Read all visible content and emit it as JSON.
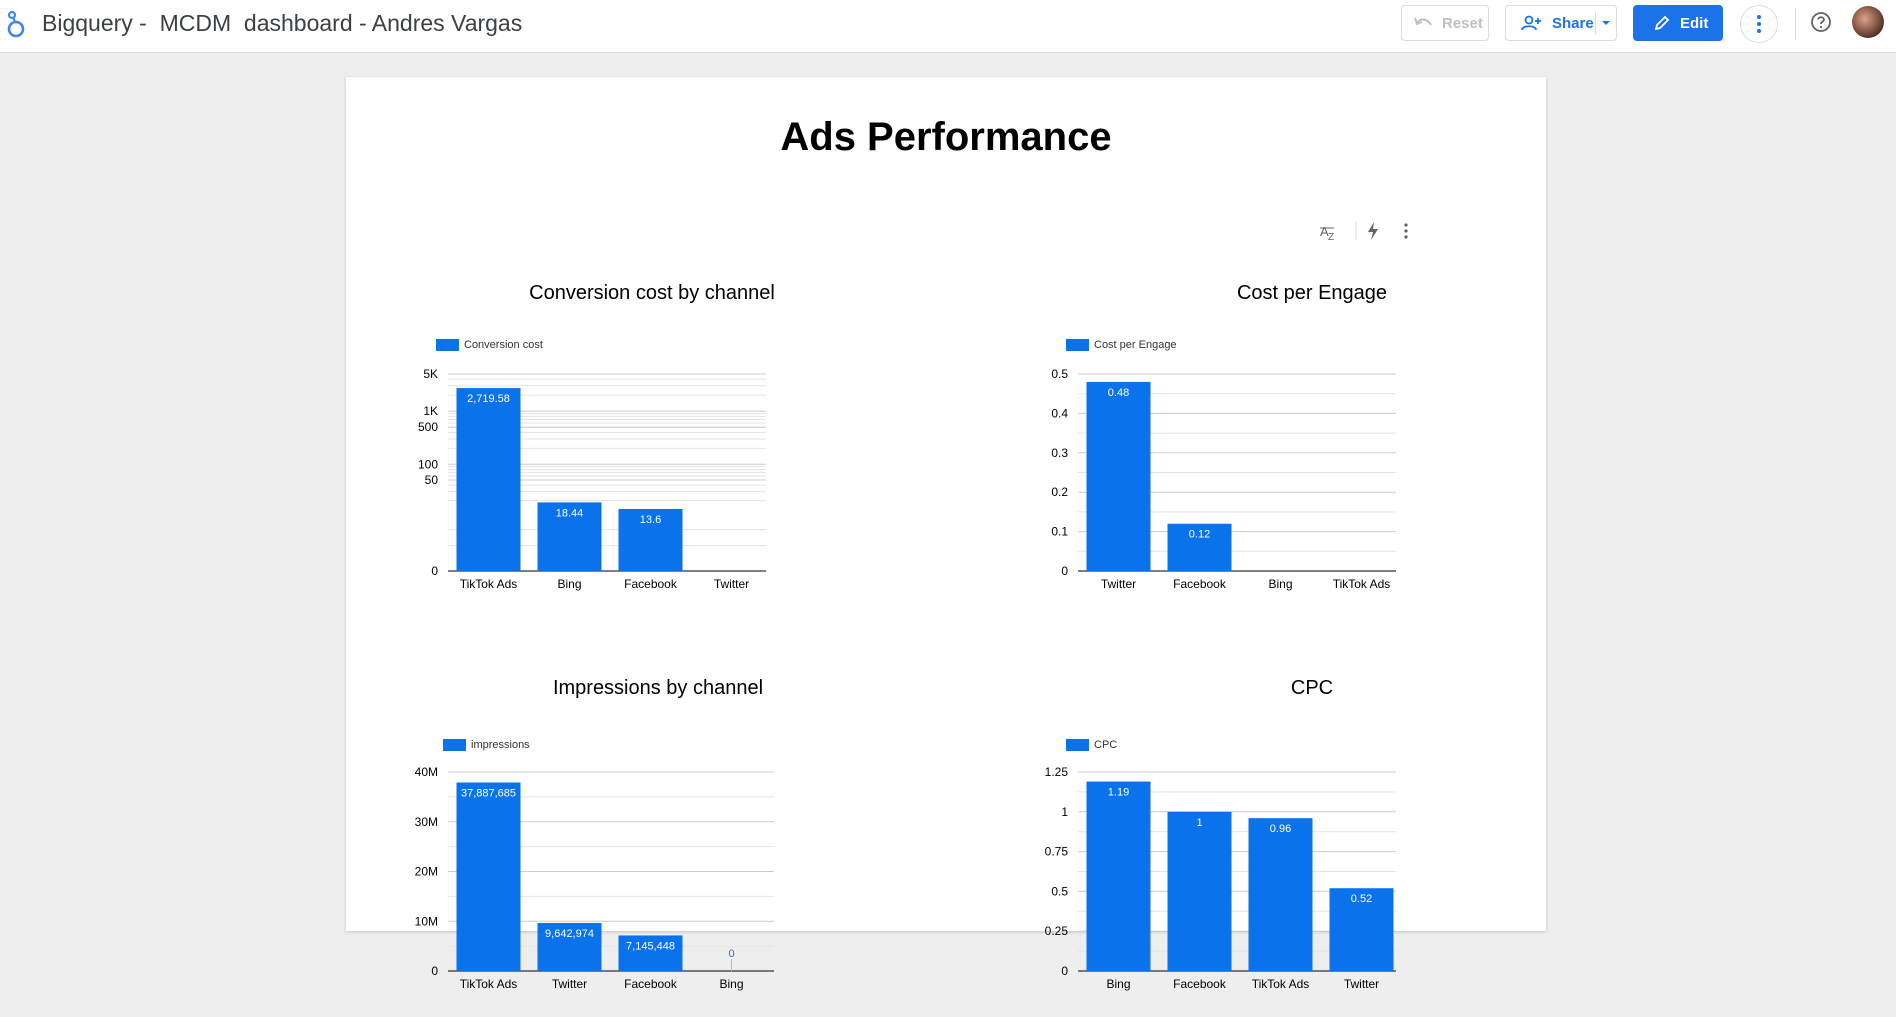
{
  "app": {
    "title": "Bigquery -  MCDM  dashboard - Andres Vargas",
    "logo_icon": "looker-studio-logo"
  },
  "toolbar": {
    "reset_label": "Reset",
    "share_label": "Share",
    "edit_label": "Edit",
    "more_icon": "more-vert-icon",
    "help_icon": "help-icon"
  },
  "colors": {
    "accent": "#1a73e8",
    "bar": "#0a73eb",
    "disabled": "#bdc1c6"
  },
  "report": {
    "title": "Ads Performance"
  },
  "chart_data": [
    {
      "id": "conv",
      "type": "bar",
      "title": "Conversion cost by channel",
      "legend": "Conversion cost",
      "scale": "log",
      "categories": [
        "TikTok Ads",
        "Bing",
        "Facebook",
        "Twitter"
      ],
      "values": [
        2719.58,
        18.44,
        13.6,
        0
      ],
      "labels": [
        "2,719.58",
        "18.44",
        "13.6",
        ""
      ],
      "ticks": [
        {
          "value": 0,
          "label": "0"
        },
        {
          "value": 50,
          "label": "50"
        },
        {
          "value": 100,
          "label": "100"
        },
        {
          "value": 500,
          "label": "500"
        },
        {
          "value": 1000,
          "label": "1K"
        },
        {
          "value": 5000,
          "label": "5K"
        }
      ]
    },
    {
      "id": "cpe",
      "type": "bar",
      "title": "Cost per Engage",
      "legend": "Cost per Engage",
      "scale": "linear",
      "ylim": [
        0,
        0.5
      ],
      "categories": [
        "Twitter",
        "Facebook",
        "Bing",
        "TikTok Ads"
      ],
      "values": [
        0.48,
        0.12,
        0,
        0
      ],
      "labels": [
        "0.48",
        "0.12",
        "",
        ""
      ],
      "ticks": [
        {
          "value": 0,
          "label": "0"
        },
        {
          "value": 0.1,
          "label": "0.1"
        },
        {
          "value": 0.2,
          "label": "0.2"
        },
        {
          "value": 0.3,
          "label": "0.3"
        },
        {
          "value": 0.4,
          "label": "0.4"
        },
        {
          "value": 0.5,
          "label": "0.5"
        }
      ]
    },
    {
      "id": "imp",
      "type": "bar",
      "title": "Impressions by channel",
      "legend": "impressions",
      "scale": "linear",
      "ylim": [
        0,
        40000000
      ],
      "categories": [
        "TikTok Ads",
        "Twitter",
        "Facebook",
        "Bing"
      ],
      "values": [
        37887685,
        9642974,
        7145448,
        0
      ],
      "labels": [
        "37,887,685",
        "9,642,974",
        "7,145,448",
        "0"
      ],
      "ticks": [
        {
          "value": 0,
          "label": "0"
        },
        {
          "value": 10000000,
          "label": "10M"
        },
        {
          "value": 20000000,
          "label": "20M"
        },
        {
          "value": 30000000,
          "label": "30M"
        },
        {
          "value": 40000000,
          "label": "40M"
        }
      ]
    },
    {
      "id": "cpc",
      "type": "bar",
      "title": "CPC",
      "legend": "CPC",
      "scale": "linear",
      "ylim": [
        0,
        1.25
      ],
      "categories": [
        "Bing",
        "Facebook",
        "TikTok Ads",
        "Twitter"
      ],
      "values": [
        1.19,
        1,
        0.96,
        0.52
      ],
      "labels": [
        "1.19",
        "1",
        "0.96",
        "0.52"
      ],
      "ticks": [
        {
          "value": 0,
          "label": "0"
        },
        {
          "value": 0.25,
          "label": "0.25"
        },
        {
          "value": 0.5,
          "label": "0.5"
        },
        {
          "value": 0.75,
          "label": "0.75"
        },
        {
          "value": 1,
          "label": "1"
        },
        {
          "value": 1.25,
          "label": "1.25"
        }
      ]
    }
  ]
}
